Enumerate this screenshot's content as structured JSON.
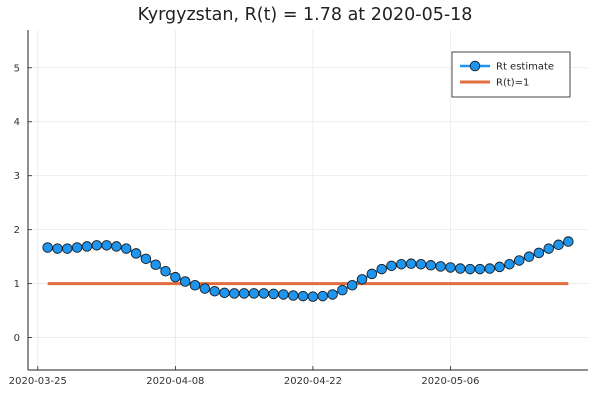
{
  "chart_data": {
    "type": "line",
    "title": "Kyrgyzstan, R(t) = 1.78 at 2020-05-18",
    "xlabel": "",
    "ylabel": "",
    "xlim": [
      "2020-03-24",
      "2020-05-20"
    ],
    "ylim": [
      -0.6,
      5.7
    ],
    "x_ticks": [
      "2020-03-25",
      "2020-04-08",
      "2020-04-22",
      "2020-05-06"
    ],
    "y_ticks": [
      0,
      1,
      2,
      3,
      4,
      5
    ],
    "grid": true,
    "legend_position": "top-right",
    "colors": {
      "estimate": "#1e96f0",
      "threshold": "#e26e3f",
      "marker_edge": "#1a1a1a"
    },
    "series": [
      {
        "name": "Rt estimate",
        "kind": "line-markers",
        "x": [
          "2020-03-26",
          "2020-03-27",
          "2020-03-28",
          "2020-03-29",
          "2020-03-30",
          "2020-03-31",
          "2020-04-01",
          "2020-04-02",
          "2020-04-03",
          "2020-04-04",
          "2020-04-05",
          "2020-04-06",
          "2020-04-07",
          "2020-04-08",
          "2020-04-09",
          "2020-04-10",
          "2020-04-11",
          "2020-04-12",
          "2020-04-13",
          "2020-04-14",
          "2020-04-15",
          "2020-04-16",
          "2020-04-17",
          "2020-04-18",
          "2020-04-19",
          "2020-04-20",
          "2020-04-21",
          "2020-04-22",
          "2020-04-23",
          "2020-04-24",
          "2020-04-25",
          "2020-04-26",
          "2020-04-27",
          "2020-04-28",
          "2020-04-29",
          "2020-04-30",
          "2020-05-01",
          "2020-05-02",
          "2020-05-03",
          "2020-05-04",
          "2020-05-05",
          "2020-05-06",
          "2020-05-07",
          "2020-05-08",
          "2020-05-09",
          "2020-05-10",
          "2020-05-11",
          "2020-05-12",
          "2020-05-13",
          "2020-05-14",
          "2020-05-15",
          "2020-05-16",
          "2020-05-17",
          "2020-05-18"
        ],
        "values": [
          1.67,
          1.65,
          1.65,
          1.67,
          1.69,
          1.71,
          1.71,
          1.69,
          1.65,
          1.56,
          1.46,
          1.35,
          1.23,
          1.12,
          1.04,
          0.97,
          0.91,
          0.86,
          0.83,
          0.82,
          0.82,
          0.82,
          0.82,
          0.81,
          0.8,
          0.78,
          0.77,
          0.76,
          0.77,
          0.8,
          0.88,
          0.97,
          1.08,
          1.18,
          1.27,
          1.33,
          1.36,
          1.37,
          1.36,
          1.34,
          1.32,
          1.3,
          1.28,
          1.27,
          1.27,
          1.28,
          1.31,
          1.36,
          1.43,
          1.5,
          1.57,
          1.65,
          1.72,
          1.78
        ]
      },
      {
        "name": "R(t)=1",
        "kind": "line",
        "x": [
          "2020-03-26",
          "2020-05-18"
        ],
        "values": [
          1,
          1
        ]
      }
    ]
  }
}
